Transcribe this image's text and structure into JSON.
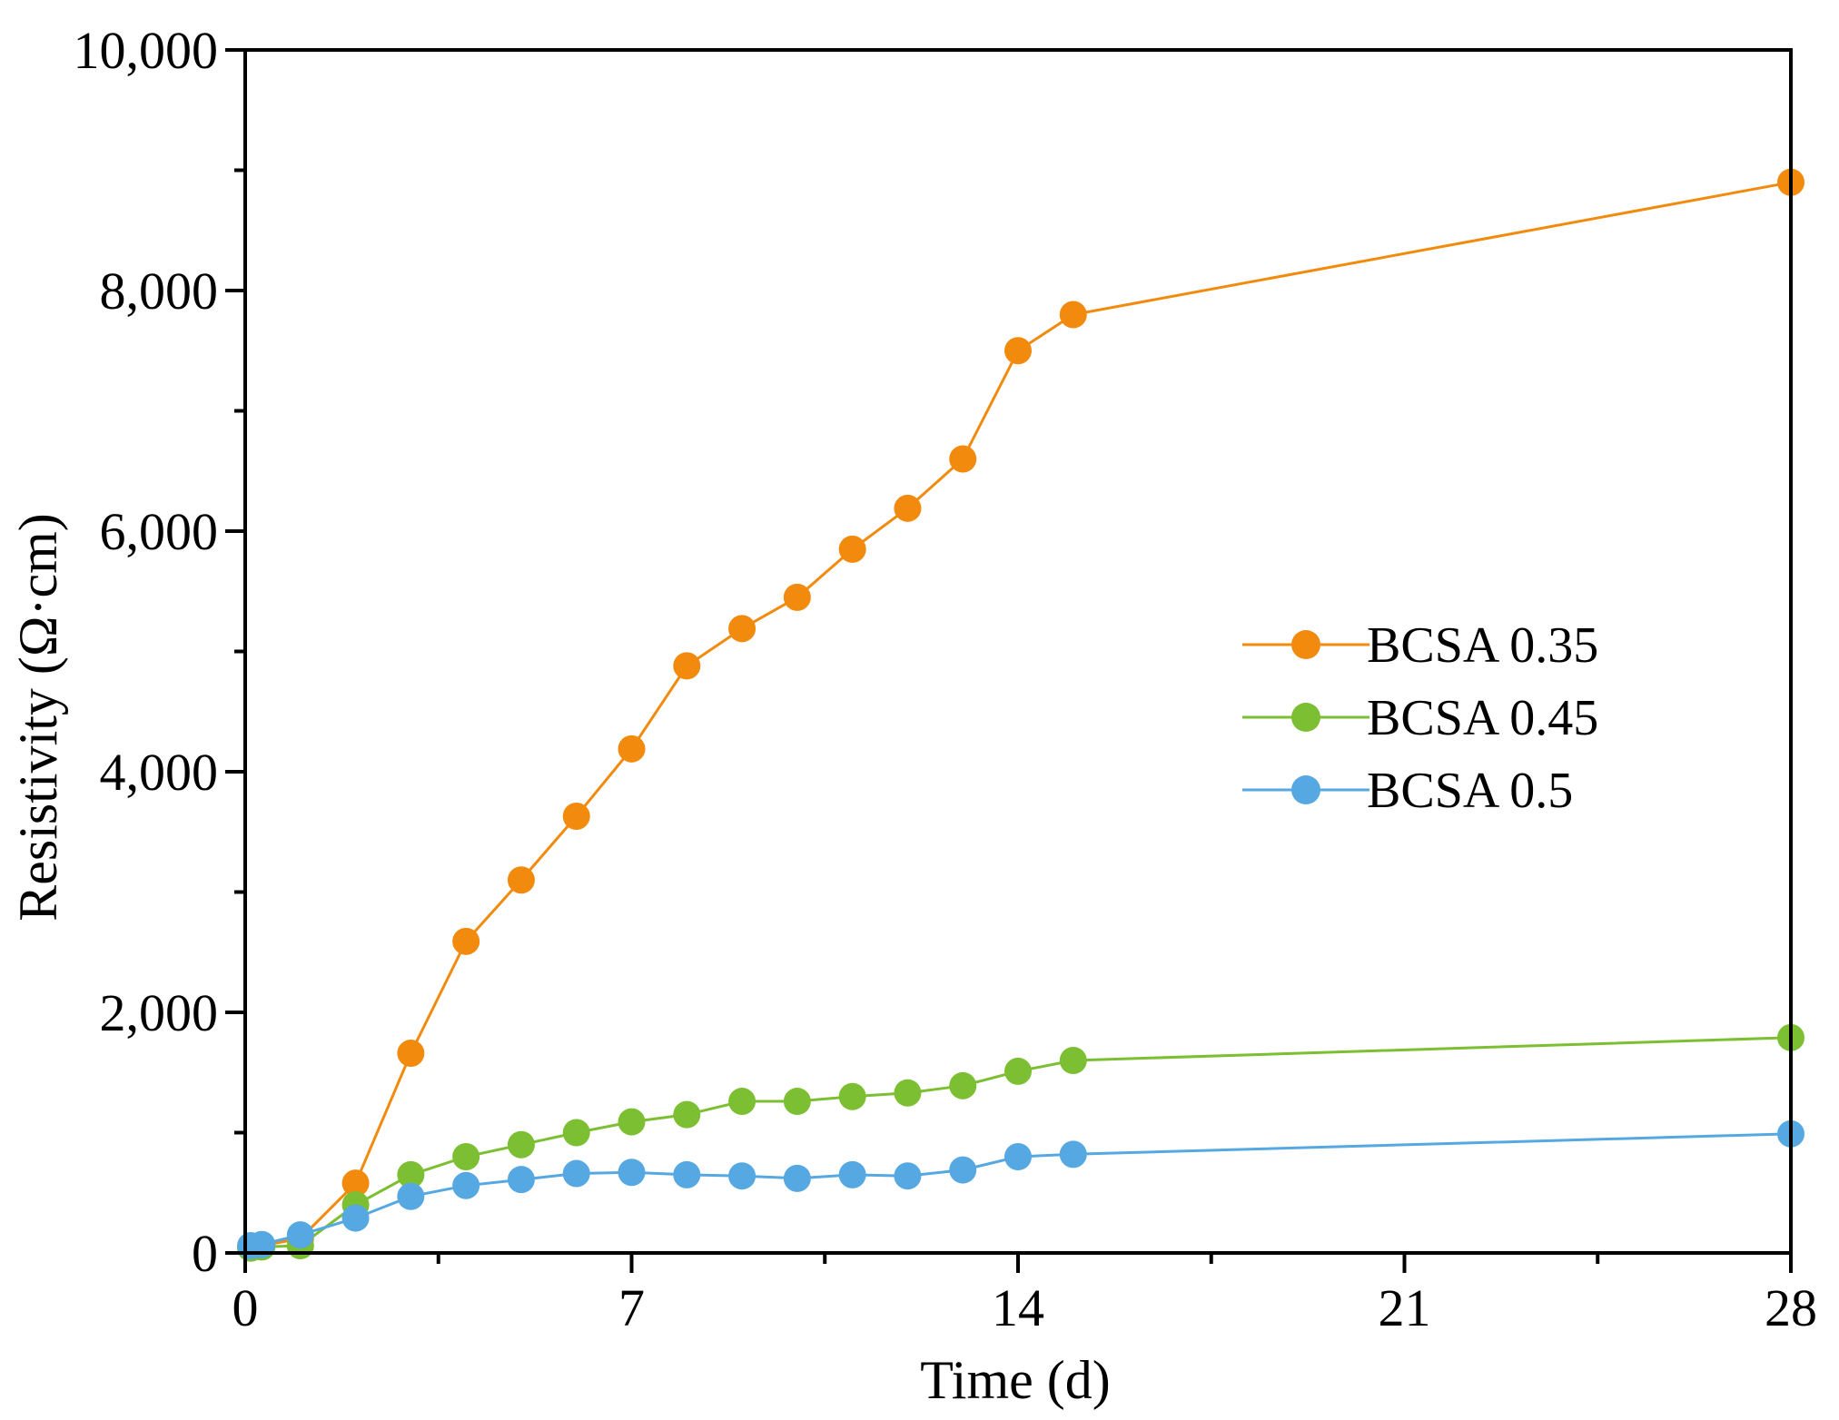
{
  "chart_data": {
    "type": "line",
    "title": "",
    "xlabel": "Time (d)",
    "ylabel": "Resistivity (Ω·cm)",
    "xlim": [
      0,
      28
    ],
    "ylim": [
      0,
      10000
    ],
    "xticks": [
      0,
      7,
      14,
      21,
      28
    ],
    "xtick_labels": [
      "0",
      "7",
      "14",
      "21",
      "28"
    ],
    "xminor": [
      3.5,
      10.5,
      17.5,
      24.5
    ],
    "yticks": [
      0,
      2000,
      4000,
      6000,
      8000,
      10000
    ],
    "ytick_labels": [
      "0",
      "2,000",
      "4,000",
      "6,000",
      "8,000",
      "10,000"
    ],
    "yminor": [
      1000,
      3000,
      5000,
      7000,
      9000
    ],
    "grid": false,
    "legend_position": "right-middle",
    "series": [
      {
        "name": "BCSA 0.35",
        "color": "#f28a0e",
        "x": [
          0.1,
          0.3,
          1,
          2,
          3,
          4,
          5,
          6,
          7,
          8,
          9,
          10,
          11,
          12,
          13,
          14,
          15,
          28
        ],
        "y": [
          50,
          60,
          120,
          580,
          1660,
          2590,
          3100,
          3630,
          4190,
          4880,
          5190,
          5450,
          5850,
          6190,
          6600,
          7500,
          7800,
          8900
        ]
      },
      {
        "name": "BCSA 0.45",
        "color": "#7cbf33",
        "x": [
          0.1,
          0.3,
          1,
          2,
          3,
          4,
          5,
          6,
          7,
          8,
          9,
          10,
          11,
          12,
          13,
          14,
          15,
          28
        ],
        "y": [
          40,
          50,
          60,
          400,
          650,
          800,
          900,
          1000,
          1090,
          1150,
          1260,
          1260,
          1300,
          1330,
          1390,
          1510,
          1600,
          1790
        ]
      },
      {
        "name": "BCSA 0.5",
        "color": "#56a8e2",
        "x": [
          0.1,
          0.3,
          1,
          2,
          3,
          4,
          5,
          6,
          7,
          8,
          9,
          10,
          11,
          12,
          13,
          14,
          15,
          28
        ],
        "y": [
          60,
          70,
          150,
          290,
          470,
          560,
          610,
          660,
          670,
          650,
          640,
          620,
          650,
          640,
          690,
          800,
          820,
          990
        ]
      }
    ]
  }
}
